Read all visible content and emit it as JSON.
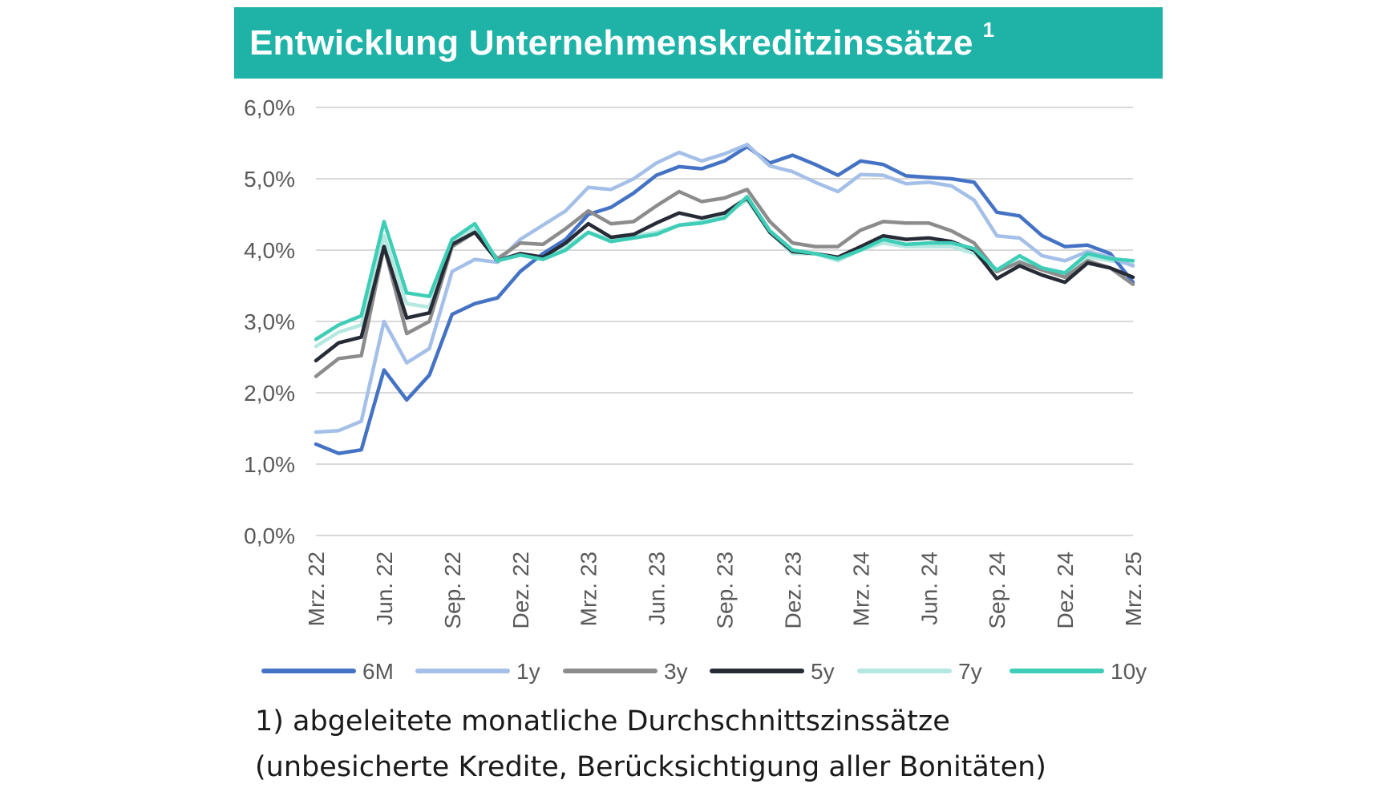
{
  "title": {
    "text": "Entwicklung Unternehmenskreditzinssätze",
    "superscript": "1"
  },
  "footnote": {
    "line1": "1) abgeleitete monatliche Durchschnittszinssätze",
    "line2": "(unbesicherte Kredite, Berücksichtigung aller Bonitäten)"
  },
  "chart_data": {
    "type": "line",
    "title": "Entwicklung Unternehmenskreditzinssätze",
    "ylabel": "",
    "xlabel": "",
    "ylim": [
      0,
      6
    ],
    "y_ticks": [
      0,
      1,
      2,
      3,
      4,
      5,
      6
    ],
    "y_tick_labels": [
      "0,0%",
      "1,0%",
      "2,0%",
      "3,0%",
      "4,0%",
      "5,0%",
      "6,0%"
    ],
    "grid": true,
    "legend_position": "bottom",
    "x": [
      "Mrz. 22",
      "Apr. 22",
      "Mai 22",
      "Jun. 22",
      "Jul. 22",
      "Aug. 22",
      "Sep. 22",
      "Okt. 22",
      "Nov. 22",
      "Dez. 22",
      "Jan. 23",
      "Feb. 23",
      "Mrz. 23",
      "Apr. 23",
      "Mai 23",
      "Jun. 23",
      "Jul. 23",
      "Aug. 23",
      "Sep. 23",
      "Okt. 23",
      "Nov. 23",
      "Dez. 23",
      "Jan. 24",
      "Feb. 24",
      "Mrz. 24",
      "Apr. 24",
      "Mai 24",
      "Jun. 24",
      "Jul. 24",
      "Aug. 24",
      "Sep. 24",
      "Okt. 24",
      "Nov. 24",
      "Dez. 24",
      "Jan. 25",
      "Feb. 25",
      "Mrz. 25"
    ],
    "x_tick_labels": [
      "Mrz. 22",
      "Jun. 22",
      "Sep. 22",
      "Dez. 22",
      "Mrz. 23",
      "Jun. 23",
      "Sep. 23",
      "Dez. 23",
      "Mrz. 24",
      "Jun. 24",
      "Sep. 24",
      "Dez. 24",
      "Mrz. 25"
    ],
    "x_tick_indices": [
      0,
      3,
      6,
      9,
      12,
      15,
      18,
      21,
      24,
      27,
      30,
      33,
      36
    ],
    "series": [
      {
        "name": "7y",
        "color": "#b4e8e0",
        "values": [
          2.65,
          2.85,
          2.95,
          4.2,
          3.25,
          3.2,
          4.1,
          4.3,
          3.85,
          3.95,
          3.9,
          4.05,
          4.25,
          4.15,
          4.2,
          4.25,
          4.35,
          4.4,
          4.5,
          4.7,
          4.25,
          3.95,
          3.95,
          3.85,
          4.0,
          4.1,
          4.05,
          4.05,
          4.05,
          3.95,
          3.7,
          3.85,
          3.75,
          3.65,
          3.9,
          3.85,
          3.8
        ]
      },
      {
        "name": "6M",
        "color": "#4472c4",
        "values": [
          1.28,
          1.15,
          1.2,
          2.32,
          1.9,
          2.25,
          3.1,
          3.25,
          3.33,
          3.7,
          3.95,
          4.15,
          4.5,
          4.6,
          4.8,
          5.05,
          5.17,
          5.14,
          5.25,
          5.45,
          5.22,
          5.33,
          5.2,
          5.05,
          5.25,
          5.2,
          5.04,
          5.02,
          5.0,
          4.95,
          4.53,
          4.48,
          4.2,
          4.05,
          4.07,
          3.95,
          3.55
        ]
      },
      {
        "name": "1y",
        "color": "#a4bfe8",
        "values": [
          1.45,
          1.47,
          1.6,
          3.0,
          2.42,
          2.62,
          3.7,
          3.87,
          3.83,
          4.15,
          4.35,
          4.55,
          4.88,
          4.85,
          5.0,
          5.22,
          5.37,
          5.25,
          5.35,
          5.48,
          5.18,
          5.1,
          4.95,
          4.82,
          5.06,
          5.05,
          4.93,
          4.95,
          4.9,
          4.7,
          4.2,
          4.17,
          3.92,
          3.85,
          3.98,
          3.9,
          3.78
        ]
      },
      {
        "name": "3y",
        "color": "#8c8c8c",
        "values": [
          2.23,
          2.48,
          2.52,
          4.05,
          2.83,
          3.0,
          4.05,
          4.25,
          3.88,
          4.1,
          4.08,
          4.3,
          4.55,
          4.37,
          4.4,
          4.62,
          4.82,
          4.68,
          4.73,
          4.85,
          4.4,
          4.1,
          4.05,
          4.05,
          4.28,
          4.4,
          4.38,
          4.38,
          4.27,
          4.1,
          3.7,
          3.83,
          3.72,
          3.62,
          3.85,
          3.75,
          3.52
        ]
      },
      {
        "name": "5y",
        "color": "#262b36",
        "values": [
          2.45,
          2.7,
          2.78,
          4.05,
          3.05,
          3.12,
          4.08,
          4.25,
          3.85,
          3.95,
          3.9,
          4.1,
          4.37,
          4.18,
          4.22,
          4.38,
          4.52,
          4.45,
          4.52,
          4.73,
          4.25,
          3.98,
          3.95,
          3.9,
          4.05,
          4.2,
          4.15,
          4.17,
          4.12,
          4.0,
          3.6,
          3.78,
          3.65,
          3.55,
          3.82,
          3.75,
          3.62
        ]
      },
      {
        "name": "10y",
        "color": "#3ecdb6",
        "values": [
          2.75,
          2.95,
          3.08,
          4.4,
          3.4,
          3.35,
          4.15,
          4.37,
          3.85,
          3.93,
          3.87,
          4.0,
          4.25,
          4.12,
          4.17,
          4.22,
          4.35,
          4.38,
          4.45,
          4.75,
          4.27,
          4.0,
          3.95,
          3.88,
          4.0,
          4.15,
          4.08,
          4.1,
          4.1,
          4.02,
          3.72,
          3.92,
          3.75,
          3.68,
          3.95,
          3.88,
          3.85
        ]
      }
    ],
    "legend_order": [
      "6M",
      "1y",
      "3y",
      "5y",
      "7y",
      "10y"
    ]
  }
}
